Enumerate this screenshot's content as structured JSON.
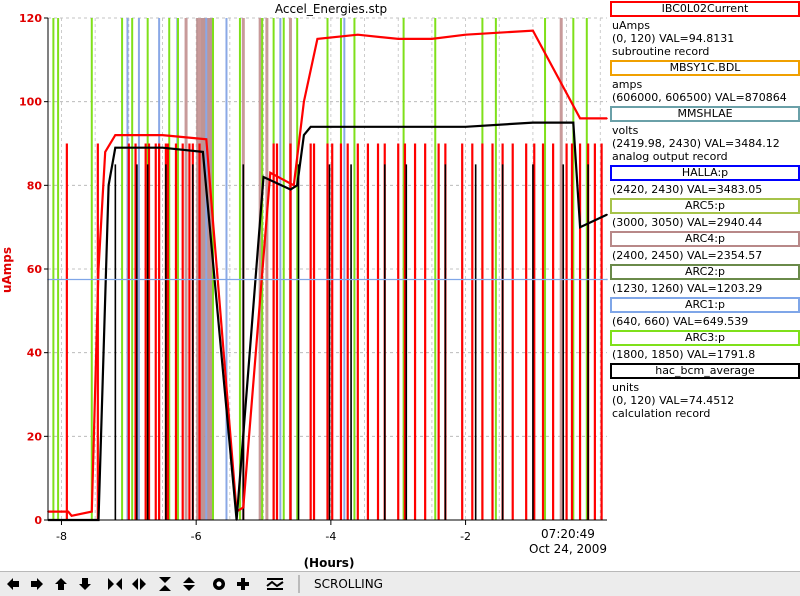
{
  "chart_data": {
    "type": "line",
    "title": "Accel_Energies.stp",
    "xlabel": "(Hours)",
    "ylabel": "uAmps",
    "xlim": [
      -8.2,
      0.1
    ],
    "ylim": [
      0,
      120
    ],
    "x_ticks": [
      "-8",
      "-6",
      "-4",
      "-2"
    ],
    "y_ticks": [
      "0",
      "20",
      "40",
      "60",
      "80",
      "100",
      "120"
    ],
    "timestamp_time": "07:20:49",
    "timestamp_date": "Oct 24, 2009",
    "grid": true,
    "series": [
      {
        "name": "IBC0L02Current",
        "color": "#ff0000",
        "x": [
          -8.2,
          -7.9,
          -7.85,
          -7.55,
          -7.45,
          -7.35,
          -7.2,
          -6.5,
          -5.85,
          -5.4,
          -5.3,
          -4.9,
          -4.55,
          -4.4,
          -4.2,
          -3.6,
          -3.0,
          -2.5,
          -2.0,
          -1.0,
          -0.3,
          0.1
        ],
        "y": [
          2,
          2,
          1,
          2,
          60,
          88,
          92,
          92,
          91,
          2,
          3,
          83,
          80,
          100,
          115,
          116,
          115,
          115,
          116,
          117,
          96,
          96
        ]
      },
      {
        "name": "hac_bcm_average",
        "color": "#000000",
        "x": [
          -8.2,
          -7.45,
          -7.3,
          -7.2,
          -6.5,
          -5.9,
          -5.4,
          -5.0,
          -4.6,
          -4.5,
          -4.4,
          -4.3,
          -3.0,
          -2.0,
          -1.0,
          -0.4,
          -0.3,
          0.1
        ],
        "y": [
          0,
          0,
          80,
          89,
          89,
          88,
          0,
          82,
          79,
          80,
          92,
          94,
          94,
          94,
          95,
          95,
          70,
          73
        ]
      },
      {
        "name": "ARC1:p",
        "color": "#7fa6e8",
        "x": [
          -8.2,
          0.1
        ],
        "y": [
          57.5,
          57.5
        ]
      }
    ],
    "trips_red": [
      -7.92,
      -7.46,
      -7.0,
      -6.9,
      -6.75,
      -6.7,
      -6.6,
      -6.55,
      -6.45,
      -6.42,
      -6.3,
      -6.2,
      -6.1,
      -6.05,
      -5.95,
      -4.85,
      -4.8,
      -4.6,
      -4.3,
      -4.25,
      -4.05,
      -3.98,
      -3.85,
      -3.75,
      -3.6,
      -3.45,
      -3.3,
      -3.2,
      -3.0,
      -2.9,
      -2.75,
      -2.6,
      -2.4,
      -2.3,
      -2.05,
      -1.9,
      -1.75,
      -1.6,
      -1.45,
      -1.3,
      -1.1,
      -0.98,
      -0.85,
      -0.7,
      -0.5,
      -0.42,
      -0.3,
      -0.18,
      -0.08,
      0.02
    ],
    "trips_black": [
      -7.2,
      -6.88,
      -6.72,
      -6.45,
      -6.05,
      -5.3,
      -4.48,
      -4.02,
      -3.7,
      -3.2,
      -2.88,
      -2.3,
      -1.85,
      -1.45,
      -1.0,
      -0.55,
      -0.18
    ],
    "arc_green": [
      -8.12,
      -8.05,
      -7.55,
      -7.1,
      -6.95,
      -6.72,
      -6.4,
      -6.27,
      -5.75,
      -5.35,
      -5.02,
      -4.85,
      -4.7,
      -4.5,
      -4.05,
      -3.85,
      -3.65,
      -2.92,
      -2.45,
      -1.75,
      -1.55,
      -0.82,
      -0.4,
      -0.2
    ],
    "arc_pink": [
      -6.15,
      -5.95,
      -5.3,
      -5.05,
      -4.95,
      -4.6,
      -0.58
    ],
    "arc_blue": [
      -7.02,
      -6.85,
      -6.55,
      -6.28,
      -5.85,
      -5.55,
      -4.75,
      -4.05,
      -3.8
    ],
    "arc4_band": [
      -6.0,
      -5.75
    ]
  },
  "legend": {
    "items": [
      {
        "box": "IBC0L02Current",
        "color": "#ff0000",
        "lines": [
          "uAmps",
          "(0, 120) VAL=94.8131",
          "subroutine record"
        ]
      },
      {
        "box": "MBSY1C.BDL",
        "color": "#f0a000",
        "lines": [
          "amps",
          "(606000, 606500) VAL=870864"
        ]
      },
      {
        "box": "MMSHLAE",
        "color": "#6aa0a8",
        "lines": [
          "volts",
          "(2419.98, 2430) VAL=3484.12",
          "analog output record"
        ]
      },
      {
        "box": "HALLA:p",
        "color": "#0000ff",
        "lines": [
          "(2420, 2430) VAL=3483.05"
        ]
      },
      {
        "box": "ARC5:p",
        "color": "#a6c34a",
        "lines": [
          "(3000, 3050) VAL=2940.44"
        ]
      },
      {
        "box": "ARC4:p",
        "color": "#b88888",
        "lines": [
          "(2400, 2450) VAL=2354.57"
        ]
      },
      {
        "box": "ARC2:p",
        "color": "#6a8a4a",
        "lines": [
          "(1230, 1260) VAL=1203.29"
        ]
      },
      {
        "box": "ARC1:p",
        "color": "#7fa6e8",
        "lines": [
          "(640, 660) VAL=649.539"
        ]
      },
      {
        "box": "ARC3:p",
        "color": "#7fe01a",
        "lines": [
          "(1800, 1850) VAL=1791.8"
        ]
      },
      {
        "box": "hac_bcm_average",
        "color": "#000000",
        "lines": [
          "units",
          "(0, 120) VAL=74.4512",
          "calculation record"
        ]
      }
    ]
  },
  "toolbar": {
    "mode_label": "SCROLLING",
    "buttons": [
      "arrow-left-icon",
      "arrow-right-icon",
      "arrow-up-icon",
      "arrow-down-icon",
      "expand-horizontal-icon",
      "compress-horizontal-icon",
      "compress-vertical-icon",
      "expand-vertical-icon",
      "reset-circle-icon",
      "plus-icon",
      "scroll-mode-icon"
    ]
  }
}
